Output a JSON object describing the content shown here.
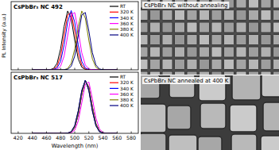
{
  "chart_data": [
    {
      "type": "line",
      "title": "CsPbBr₃ NC 492",
      "y_label": "PL Intensity (a.u.)",
      "x": [
        440,
        445,
        450,
        455,
        460,
        465,
        470,
        475,
        480,
        485,
        490,
        495,
        500,
        505,
        510,
        515,
        520,
        525,
        530,
        535,
        540,
        545,
        550,
        555,
        560
      ],
      "xlim": [
        410,
        590
      ],
      "xticks": [
        420,
        440,
        460,
        480,
        500,
        520,
        540,
        560,
        580
      ],
      "ylim": [
        0,
        1.15
      ],
      "yticks": [],
      "tick_labels": false,
      "grid": false,
      "legend": "upper right",
      "series": [
        {
          "name": "RT",
          "color": "#000000",
          "values": [
            0,
            0,
            0,
            0,
            0,
            0.003,
            0.022,
            0.109,
            0.351,
            0.732,
            0.991,
            0.871,
            0.496,
            0.183,
            0.044,
            0.007,
            0.001,
            0,
            0,
            0,
            0,
            0,
            0,
            0,
            0
          ]
        },
        {
          "name": "320 K",
          "color": "#ff0000",
          "values": [
            0,
            0,
            0,
            0,
            0,
            0.001,
            0.01,
            0.06,
            0.231,
            0.575,
            0.925,
            0.966,
            0.654,
            0.288,
            0.082,
            0.015,
            0.002,
            0,
            0,
            0,
            0,
            0,
            0,
            0,
            0
          ]
        },
        {
          "name": "340 K",
          "color": "#0000ff",
          "values": [
            0,
            0,
            0,
            0,
            0,
            0,
            0.004,
            0.031,
            0.143,
            0.421,
            0.805,
            1,
            0.805,
            0.421,
            0.143,
            0.031,
            0.004,
            0,
            0,
            0,
            0,
            0,
            0,
            0,
            0
          ]
        },
        {
          "name": "360 K",
          "color": "#ff00ff",
          "values": [
            0,
            0,
            0,
            0,
            0,
            0,
            0.001,
            0.01,
            0.06,
            0.231,
            0.575,
            0.925,
            0.966,
            0.654,
            0.288,
            0.082,
            0.015,
            0.002,
            0,
            0,
            0,
            0,
            0,
            0,
            0
          ]
        },
        {
          "name": "380 K",
          "color": "#808000",
          "values": [
            0,
            0,
            0,
            0,
            0,
            0,
            0,
            0,
            0,
            0.003,
            0.022,
            0.109,
            0.351,
            0.732,
            0.991,
            0.871,
            0.496,
            0.183,
            0.044,
            0.007,
            0.001,
            0,
            0,
            0,
            0
          ]
        },
        {
          "name": "400 K",
          "color": "#000080",
          "values": [
            0,
            0,
            0,
            0,
            0,
            0,
            0,
            0,
            0,
            0.001,
            0.01,
            0.06,
            0.231,
            0.575,
            0.925,
            0.966,
            0.654,
            0.288,
            0.082,
            0.015,
            0.002,
            0,
            0,
            0,
            0
          ]
        }
      ]
    },
    {
      "type": "line",
      "title": "CsPbBr₃ NC 517",
      "x_label": "Wavelength (nm)",
      "x": [
        440,
        445,
        450,
        455,
        460,
        465,
        470,
        475,
        480,
        485,
        490,
        495,
        500,
        505,
        510,
        515,
        520,
        525,
        530,
        535,
        540,
        545,
        550,
        555,
        560
      ],
      "xlim": [
        410,
        590
      ],
      "xticks": [
        420,
        440,
        460,
        480,
        500,
        520,
        540,
        560,
        580
      ],
      "ylim": [
        0,
        1.15
      ],
      "yticks": [],
      "tick_labels": "x",
      "grid": false,
      "legend": "upper right",
      "series": [
        {
          "name": "RT",
          "color": "#000000",
          "values": [
            0,
            0,
            0,
            0,
            0,
            0,
            0,
            0,
            0,
            0,
            0.004,
            0.031,
            0.143,
            0.421,
            0.805,
            1,
            0.805,
            0.421,
            0.143,
            0.031,
            0.004,
            0,
            0,
            0,
            0
          ]
        },
        {
          "name": "320 K",
          "color": "#ff0000",
          "values": [
            0,
            0,
            0,
            0,
            0,
            0,
            0,
            0,
            0,
            0,
            0.003,
            0.022,
            0.109,
            0.351,
            0.732,
            0.991,
            0.871,
            0.496,
            0.183,
            0.044,
            0.007,
            0.001,
            0,
            0,
            0
          ]
        },
        {
          "name": "340 K",
          "color": "#0000ff",
          "values": [
            0,
            0,
            0,
            0,
            0,
            0,
            0,
            0,
            0,
            0,
            0.003,
            0.022,
            0.109,
            0.351,
            0.732,
            0.991,
            0.871,
            0.496,
            0.183,
            0.044,
            0.007,
            0.001,
            0,
            0,
            0
          ]
        },
        {
          "name": "360 K",
          "color": "#ff00ff",
          "values": [
            0,
            0,
            0,
            0,
            0,
            0,
            0,
            0,
            0,
            0,
            0.001,
            0.01,
            0.06,
            0.231,
            0.575,
            0.925,
            0.966,
            0.654,
            0.288,
            0.082,
            0.015,
            0.002,
            0,
            0,
            0
          ]
        },
        {
          "name": "380 K",
          "color": "#808000",
          "values": [
            0,
            0,
            0,
            0,
            0,
            0,
            0,
            0,
            0,
            0,
            0.003,
            0.022,
            0.109,
            0.351,
            0.732,
            0.991,
            0.871,
            0.496,
            0.183,
            0.044,
            0.007,
            0.001,
            0,
            0,
            0
          ]
        },
        {
          "name": "400 K",
          "color": "#000080",
          "values": [
            0,
            0,
            0,
            0,
            0,
            0,
            0,
            0,
            0,
            0,
            0.004,
            0.031,
            0.143,
            0.421,
            0.805,
            1,
            0.805,
            0.421,
            0.143,
            0.031,
            0.004,
            0,
            0,
            0,
            0
          ]
        }
      ]
    }
  ],
  "images": [
    {
      "label": "CsPbBr₃ NC without annealing"
    },
    {
      "label": "CsPbBr₃ NC annealed at 400 K"
    }
  ]
}
